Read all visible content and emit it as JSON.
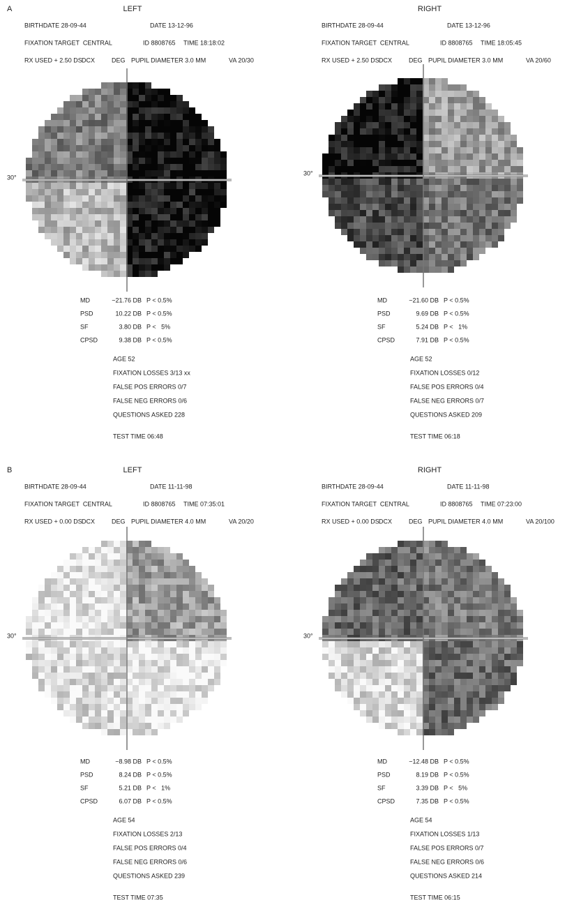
{
  "panels": [
    {
      "label": "A",
      "eye": "LEFT",
      "birthdate": "BIRTHDATE 28-09-44",
      "date": "DATE 13-12-96",
      "fixation_target": "FIXATION TARGET  CENTRAL",
      "id": "ID 8808765",
      "time": "TIME 18:18:02",
      "rx": "RX USED + 2.50 DS",
      "dcx": "DCX",
      "deg": "DEG",
      "pupil": "PUPIL DIAMETER 3.0 MM",
      "va": "VA 20/30",
      "axis_label": "30°",
      "indices": [
        {
          "name": "MD",
          "value": "−21.76 DB",
          "p": "P < 0.5%"
        },
        {
          "name": "PSD",
          "value": "10.22 DB",
          "p": "P < 0.5%"
        },
        {
          "name": "SF",
          "value": "3.80 DB",
          "p": "P <   5%"
        },
        {
          "name": "CPSD",
          "value": "9.38 DB",
          "p": "P < 0.5%"
        }
      ],
      "age": "AGE 52",
      "fixation_losses": "FIXATION LOSSES 3/13 xx",
      "false_pos": "FALSE POS ERRORS 0/7",
      "false_neg": "FALSE NEG ERRORS 0/6",
      "questions": "QUESTIONS ASKED 228",
      "test_time": "TEST TIME 06:48"
    },
    {
      "eye": "RIGHT",
      "birthdate": "BIRTHDATE 28-09-44",
      "date": "DATE 13-12-96",
      "fixation_target": "FIXATION TARGET  CENTRAL",
      "id": "ID 8808765",
      "time": "TIME 18:05:45",
      "rx": "RX USED + 2.50 DS",
      "dcx": "DCX",
      "deg": "DEG",
      "pupil": "PUPIL DIAMETER 3.0 MM",
      "va": "VA 20/60",
      "axis_label": "30°",
      "indices": [
        {
          "name": "MD",
          "value": "−21.60 DB",
          "p": "P < 0.5%"
        },
        {
          "name": "PSD",
          "value": "9.69 DB",
          "p": "P < 0.5%"
        },
        {
          "name": "SF",
          "value": "5.24 DB",
          "p": "P <   1%"
        },
        {
          "name": "CPSD",
          "value": "7.91 DB",
          "p": "P < 0.5%"
        }
      ],
      "age": "AGE 52",
      "fixation_losses": "FIXATION LOSSES 0/12",
      "false_pos": "FALSE POS ERRORS 0/4",
      "false_neg": "FALSE NEG ERRORS 0/7",
      "questions": "QUESTIONS ASKED 209",
      "test_time": "TEST TIME 06:18"
    },
    {
      "label": "B",
      "eye": "LEFT",
      "birthdate": "BIRTHDATE 28-09-44",
      "date": "DATE 11-11-98",
      "fixation_target": "FIXATION TARGET  CENTRAL",
      "id": "ID 8808765",
      "time": "TIME 07:35:01",
      "rx": "RX USED + 0.00 DS",
      "dcx": "DCX",
      "deg": "DEG",
      "pupil": "PUPIL DIAMETER 4.0 MM",
      "va": "VA 20/20",
      "axis_label": "30°",
      "indices": [
        {
          "name": "MD",
          "value": "−8.98 DB",
          "p": "P < 0.5%"
        },
        {
          "name": "PSD",
          "value": "8.24 DB",
          "p": "P < 0.5%"
        },
        {
          "name": "SF",
          "value": "5.21 DB",
          "p": "P <   1%"
        },
        {
          "name": "CPSD",
          "value": "6.07 DB",
          "p": "P < 0.5%"
        }
      ],
      "age": "AGE 54",
      "fixation_losses": "FIXATION LOSSES 2/13",
      "false_pos": "FALSE POS ERRORS 0/4",
      "false_neg": "FALSE NEG ERRORS 0/6",
      "questions": "QUESTIONS ASKED 239",
      "test_time": "TEST TIME 07:35"
    },
    {
      "eye": "RIGHT",
      "birthdate": "BIRTHDATE 28-09-44",
      "date": "DATE 11-11-98",
      "fixation_target": "FIXATION TARGET  CENTRAL",
      "id": "ID 8808765",
      "time": "TIME 07:23:00",
      "rx": "RX USED + 0.00 DS",
      "dcx": "DCX",
      "deg": "DEG",
      "pupil": "PUPIL DIAMETER 4.0 MM",
      "va": "VA 20/100",
      "axis_label": "30°",
      "indices": [
        {
          "name": "MD",
          "value": "−12.48 DB",
          "p": "P < 0.5%"
        },
        {
          "name": "PSD",
          "value": "8.19 DB",
          "p": "P < 0.5%"
        },
        {
          "name": "SF",
          "value": "3.39 DB",
          "p": "P <   5%"
        },
        {
          "name": "CPSD",
          "value": "7.35 DB",
          "p": "P < 0.5%"
        }
      ],
      "age": "AGE 54",
      "fixation_losses": "FIXATION LOSSES 1/13",
      "false_pos": "FALSE POS ERRORS 0/7",
      "false_neg": "FALSE NEG ERRORS 0/6",
      "questions": "QUESTIONS ASKED 214",
      "test_time": "TEST TIME 06:15"
    }
  ]
}
